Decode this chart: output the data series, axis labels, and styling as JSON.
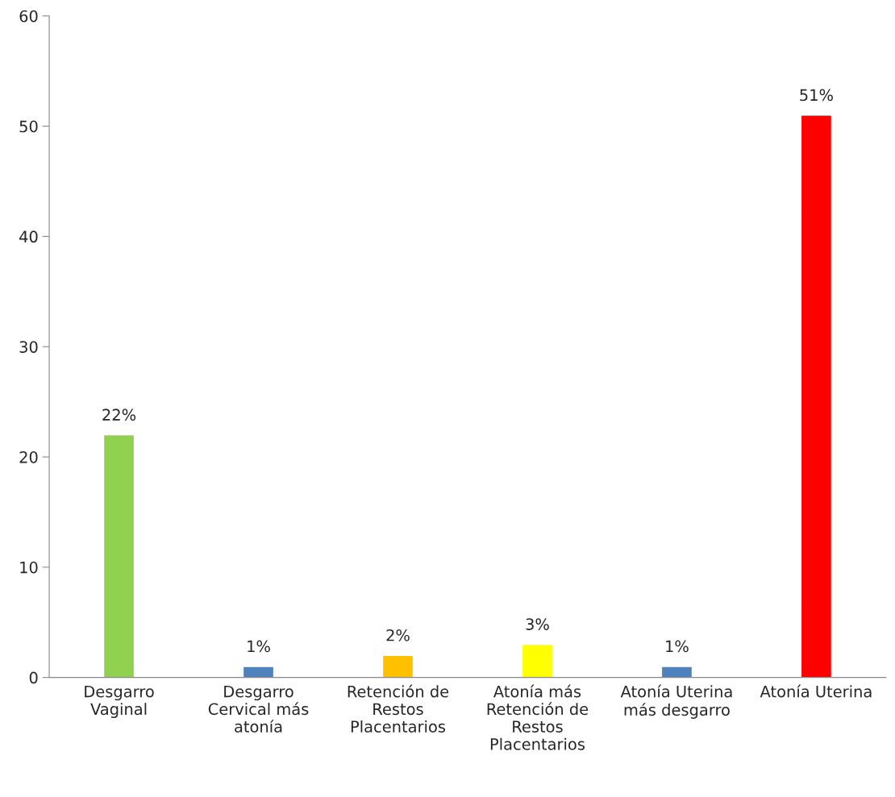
{
  "chart_data": {
    "type": "bar",
    "categories": [
      "Desgarro\nVaginal",
      "Desgarro\nCervical más\natonía",
      "Retención de\nRestos\nPlacentarios",
      "Atonía más\nRetención de\nRestos\nPlacentarios",
      "Atonía Uterina\nmás desgarro",
      "Atonía Uterina"
    ],
    "values": [
      22,
      1,
      2,
      3,
      1,
      51
    ],
    "colors": [
      "#92d050",
      "#4f81bd",
      "#ffc000",
      "#ffff00",
      "#4f81bd",
      "#ff0000"
    ],
    "value_labels": [
      "22%",
      "1%",
      "2%",
      "3%",
      "1%",
      "51%"
    ],
    "ylim": [
      0,
      60
    ],
    "yticks": [
      0,
      10,
      20,
      30,
      40,
      50,
      60
    ],
    "grid": false,
    "legend": false
  }
}
